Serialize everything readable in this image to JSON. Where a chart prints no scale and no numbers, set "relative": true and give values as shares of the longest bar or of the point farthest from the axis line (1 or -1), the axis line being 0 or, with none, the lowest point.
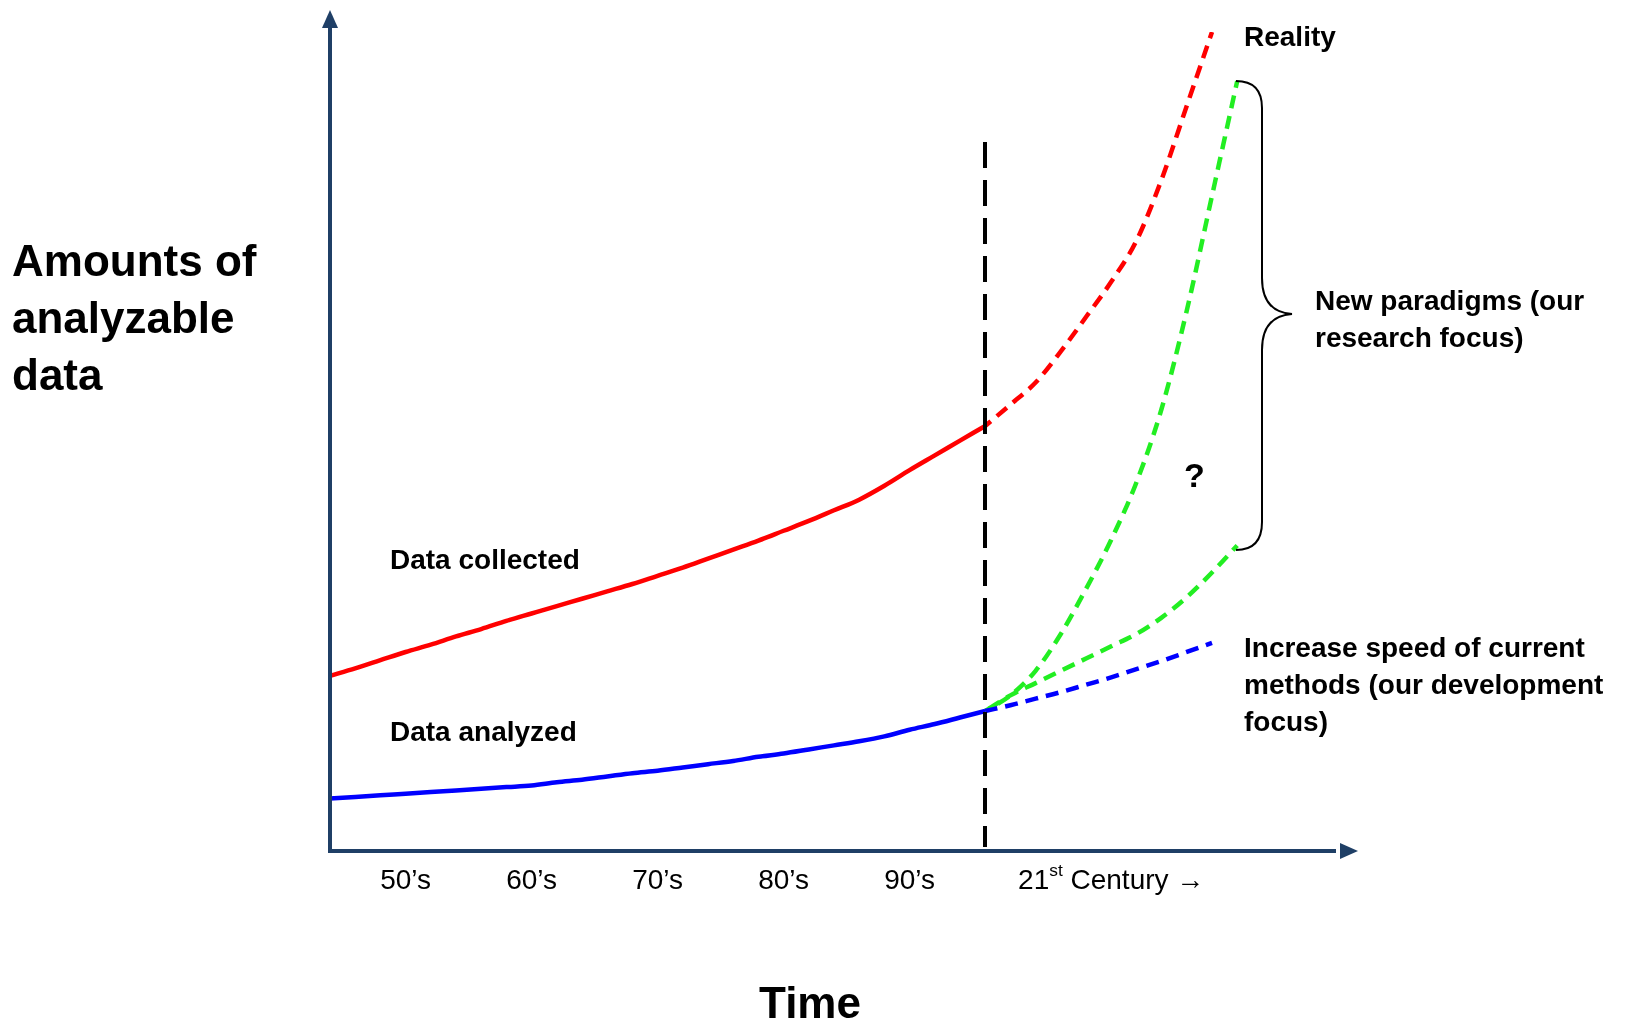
{
  "chart_data": {
    "type": "line",
    "relative": true,
    "xlabel": "Time",
    "ylabel": "Amounts of analyzable data",
    "categories": [
      null,
      null,
      null,
      "50’s",
      null,
      null,
      null,
      null,
      "60’s",
      null,
      null,
      null,
      null,
      "70’s",
      null,
      null,
      null,
      null,
      "80’s",
      null,
      null,
      null,
      null,
      "90’s",
      null,
      null,
      null,
      null,
      null,
      null,
      null,
      "21$^{st}$ Century →",
      null,
      null,
      null,
      null,
      null,
      null,
      null,
      null,
      null
    ],
    "tick_labels": "x",
    "legend": false,
    "marker": "none",
    "series": [
      {
        "name": "Data collected",
        "color": "#ff0000",
        "line_style": "solid",
        "values": [
          0.214,
          0.223,
          0.233,
          0.243,
          0.252,
          0.262,
          0.271,
          0.281,
          0.29,
          0.299,
          0.308,
          0.317,
          0.326,
          0.336,
          0.346,
          0.357,
          0.368,
          0.379,
          0.391,
          0.403,
          0.416,
          0.429,
          0.446,
          0.465,
          0.483,
          0.501,
          0.519,
          null,
          null,
          null,
          null,
          null,
          null,
          null,
          null,
          null,
          null,
          null,
          null,
          null,
          null
        ]
      },
      {
        "name": "Reality",
        "color": "#ff0000",
        "line_style": "dashed",
        "values": [
          null,
          null,
          null,
          null,
          null,
          null,
          null,
          null,
          null,
          null,
          null,
          null,
          null,
          null,
          null,
          null,
          null,
          null,
          null,
          null,
          null,
          null,
          null,
          null,
          null,
          null,
          0.519,
          0.545,
          0.572,
          0.61,
          0.652,
          0.695,
          0.745,
          0.82,
          0.91,
          1,
          null,
          null,
          null,
          null,
          null
        ]
      },
      {
        "name": "Data analyzed",
        "color": "#0000ff",
        "line_style": "solid",
        "values": [
          0.064,
          0.066,
          0.068,
          0.07,
          0.072,
          0.074,
          0.076,
          0.078,
          0.08,
          0.084,
          0.087,
          0.091,
          0.095,
          0.098,
          0.102,
          0.106,
          0.11,
          0.115,
          0.119,
          0.124,
          0.129,
          0.134,
          0.14,
          0.148,
          0.155,
          0.163,
          0.171,
          null,
          null,
          null,
          null,
          null,
          null,
          null,
          null,
          null,
          null,
          null,
          null,
          null,
          null
        ]
      },
      {
        "name": "Increase speed of current methods (our development focus)",
        "color": "#0000ff",
        "line_style": "dashed",
        "values": [
          null,
          null,
          null,
          null,
          null,
          null,
          null,
          null,
          null,
          null,
          null,
          null,
          null,
          null,
          null,
          null,
          null,
          null,
          null,
          null,
          null,
          null,
          null,
          null,
          null,
          null,
          0.171,
          0.178,
          0.186,
          0.194,
          0.203,
          0.212,
          0.222,
          0.232,
          0.243,
          0.254,
          null,
          null,
          null,
          null,
          null
        ]
      },
      {
        "color": "#22ee22",
        "line_style": "dashed",
        "values": [
          null,
          null,
          null,
          null,
          null,
          null,
          null,
          null,
          null,
          null,
          null,
          null,
          null,
          null,
          null,
          null,
          null,
          null,
          null,
          null,
          null,
          null,
          null,
          null,
          null,
          null,
          0.171,
          0.19,
          0.22,
          0.265,
          0.32,
          0.38,
          0.45,
          0.54,
          0.66,
          0.8,
          0.94,
          null,
          null,
          null,
          null
        ]
      },
      {
        "color": "#22ee22",
        "line_style": "dashed",
        "values": [
          null,
          null,
          null,
          null,
          null,
          null,
          null,
          null,
          null,
          null,
          null,
          null,
          null,
          null,
          null,
          null,
          null,
          null,
          null,
          null,
          null,
          null,
          null,
          null,
          null,
          null,
          0.171,
          0.19,
          0.205,
          0.22,
          0.235,
          0.25,
          0.265,
          0.285,
          0.31,
          0.34,
          0.373,
          null,
          null,
          null,
          null
        ]
      }
    ],
    "annotations": [
      "New paradigms (our research focus)",
      "?"
    ]
  }
}
